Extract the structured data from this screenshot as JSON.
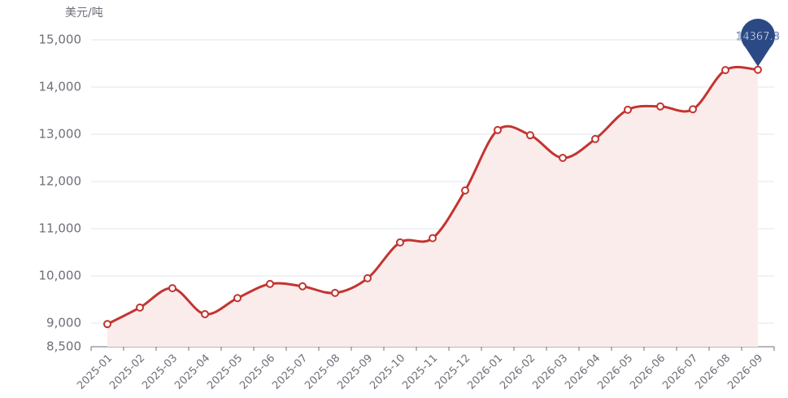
{
  "chart_data": {
    "type": "line",
    "y_axis_label": "美元/吨",
    "categories": [
      "2025-01",
      "2025-02",
      "2025-03",
      "2025-04",
      "2025-05",
      "2025-06",
      "2025-07",
      "2025-08",
      "2025-09",
      "2025-10",
      "2025-11",
      "2025-12",
      "2026-01",
      "2026-02",
      "2026-03",
      "2026-04",
      "2026-05",
      "2026-06",
      "2026-07",
      "2026-08",
      "2026-09"
    ],
    "values": [
      8980,
      9330,
      9740,
      9190,
      9530,
      9830,
      9780,
      9640,
      9950,
      10710,
      10800,
      11810,
      13090,
      12980,
      12500,
      12900,
      13520,
      13590,
      13530,
      14360,
      14367.3
    ],
    "color": "#c23531",
    "area_color": "#fbecec",
    "marker_color": "#2b4a85",
    "ylim": [
      8500,
      15000
    ],
    "yticks": [
      {
        "value": 8500,
        "label": "8,500"
      },
      {
        "value": 9000,
        "label": "9,000"
      },
      {
        "value": 10000,
        "label": "10,000"
      },
      {
        "value": 11000,
        "label": "11,000"
      },
      {
        "value": 12000,
        "label": "12,000"
      },
      {
        "value": 13000,
        "label": "13,000"
      },
      {
        "value": 14000,
        "label": "14,000"
      },
      {
        "value": 15000,
        "label": "15,000"
      }
    ],
    "grid": true
  }
}
